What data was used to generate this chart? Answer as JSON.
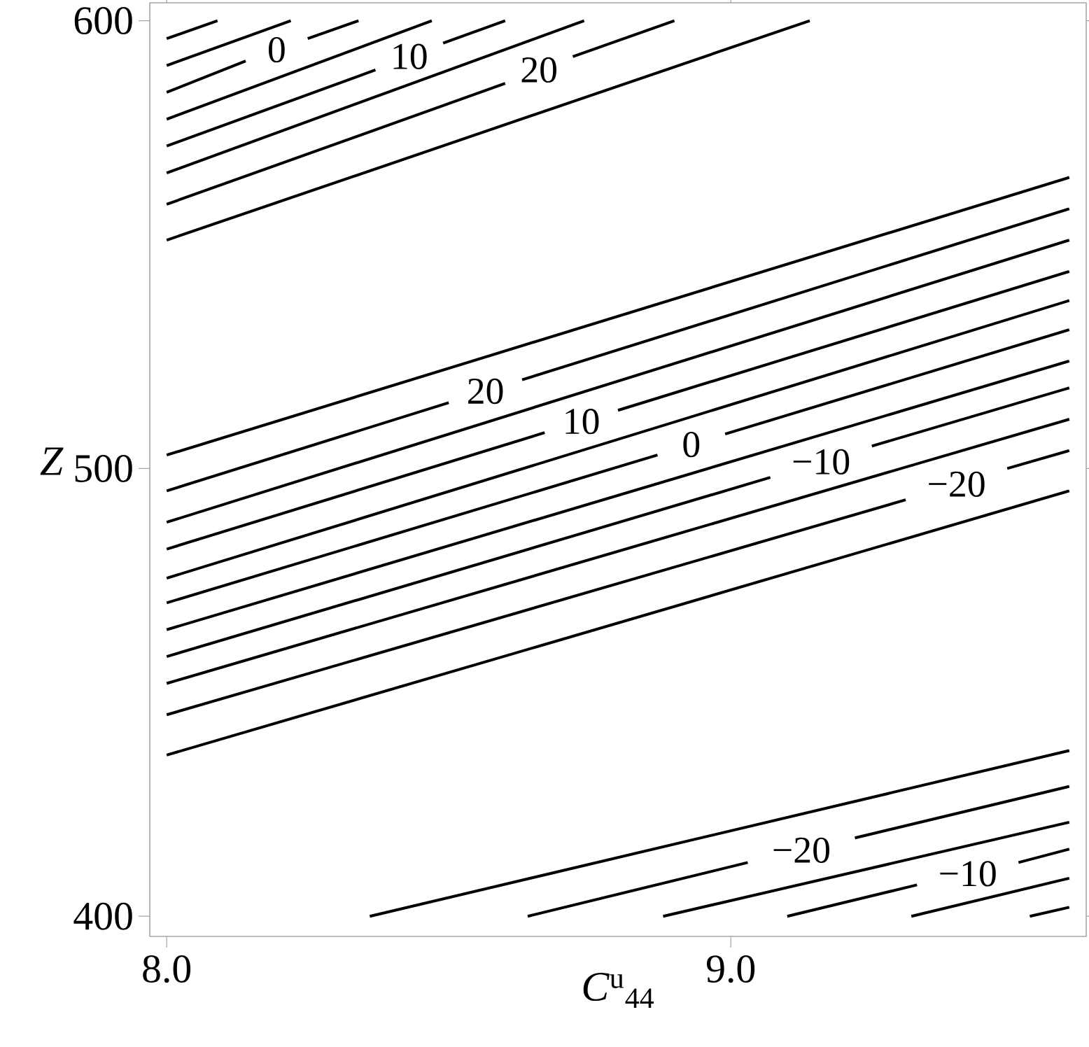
{
  "chart_data": {
    "type": "line",
    "xlabel": "*C*$^{u}$$_{44}$",
    "ylabel": "*Z*",
    "xlim": [
      7.97,
      9.63
    ],
    "ylim": [
      395.5,
      604
    ],
    "xticks": [
      {
        "value": 8,
        "label": "8.0"
      },
      {
        "value": 9,
        "label": "9.0"
      }
    ],
    "yticks": [
      400,
      500,
      600
    ],
    "grid": false,
    "marker": "none",
    "line_style": "solid",
    "series": [
      {
        "color": "#000000",
        "x": [
          8.0,
          9.6
        ],
        "values": [
          503,
          565
        ]
      },
      {
        "name": "20",
        "color": "#000000",
        "x": [
          8.0,
          8.5,
          null,
          8.63,
          9.6
        ],
        "values": [
          495,
          514.7,
          null,
          519.8,
          558
        ]
      },
      {
        "color": "#000000",
        "x": [
          8.0,
          9.6
        ],
        "values": [
          488,
          551
        ]
      },
      {
        "name": "10",
        "color": "#000000",
        "x": [
          8.0,
          8.67,
          null,
          8.8,
          9.6
        ],
        "values": [
          482,
          508,
          null,
          513,
          544
        ]
      },
      {
        "color": "#000000",
        "x": [
          8.0,
          9.6
        ],
        "values": [
          475.5,
          537.5
        ]
      },
      {
        "name": "0",
        "color": "#000000",
        "x": [
          8.0,
          8.87,
          null,
          8.99,
          9.6
        ],
        "values": [
          470,
          503,
          null,
          507.7,
          531
        ]
      },
      {
        "color": "#000000",
        "x": [
          8.0,
          9.6
        ],
        "values": [
          464,
          524
        ]
      },
      {
        "name": "−10",
        "color": "#000000",
        "x": [
          8.0,
          9.07,
          null,
          9.25,
          9.6
        ],
        "values": [
          458,
          498,
          null,
          505,
          518
        ]
      },
      {
        "color": "#000000",
        "x": [
          8.0,
          9.6
        ],
        "values": [
          452,
          511
        ]
      },
      {
        "name": "−20",
        "color": "#000000",
        "x": [
          8.0,
          9.31,
          null,
          9.49,
          9.6
        ],
        "values": [
          445,
          493,
          null,
          500,
          504
        ]
      },
      {
        "color": "#000000",
        "x": [
          8.0,
          9.6
        ],
        "values": [
          436,
          495
        ]
      },
      {
        "color": "#000000",
        "x": [
          8.0,
          8.09
        ],
        "values": [
          596,
          600
        ]
      },
      {
        "color": "#000000",
        "x": [
          8.0,
          8.22
        ],
        "values": [
          590,
          600
        ]
      },
      {
        "name": "0",
        "color": "#000000",
        "x": [
          8.0,
          8.14,
          null,
          8.25,
          8.34
        ],
        "values": [
          584,
          591,
          null,
          596,
          600
        ]
      },
      {
        "color": "#000000",
        "x": [
          8.0,
          8.47
        ],
        "values": [
          578,
          600
        ]
      },
      {
        "name": "10",
        "color": "#000000",
        "x": [
          8.0,
          8.37,
          null,
          8.49,
          8.6
        ],
        "values": [
          572,
          589,
          null,
          595,
          600
        ]
      },
      {
        "color": "#000000",
        "x": [
          8.0,
          8.74
        ],
        "values": [
          566,
          600
        ]
      },
      {
        "name": "20",
        "color": "#000000",
        "x": [
          8.0,
          8.6,
          null,
          8.72,
          8.9
        ],
        "values": [
          559,
          586,
          null,
          592,
          600
        ]
      },
      {
        "color": "#000000",
        "x": [
          8.0,
          9.14
        ],
        "values": [
          551,
          600
        ]
      },
      {
        "color": "#000000",
        "x": [
          8.36,
          9.6
        ],
        "values": [
          400,
          437
        ]
      },
      {
        "name": "−20",
        "color": "#000000",
        "x": [
          8.64,
          9.03,
          null,
          9.22,
          9.6
        ],
        "values": [
          400,
          412,
          null,
          417.5,
          429
        ]
      },
      {
        "color": "#000000",
        "x": [
          8.88,
          9.6
        ],
        "values": [
          400,
          421
        ]
      },
      {
        "name": "−10",
        "color": "#000000",
        "x": [
          9.1,
          9.33,
          null,
          9.51,
          9.6
        ],
        "values": [
          400,
          407,
          null,
          412,
          415
        ]
      },
      {
        "color": "#000000",
        "x": [
          9.32,
          9.6
        ],
        "values": [
          400,
          408.5
        ]
      },
      {
        "color": "#000000",
        "x": [
          9.53,
          9.6
        ],
        "values": [
          400,
          402
        ]
      }
    ]
  }
}
